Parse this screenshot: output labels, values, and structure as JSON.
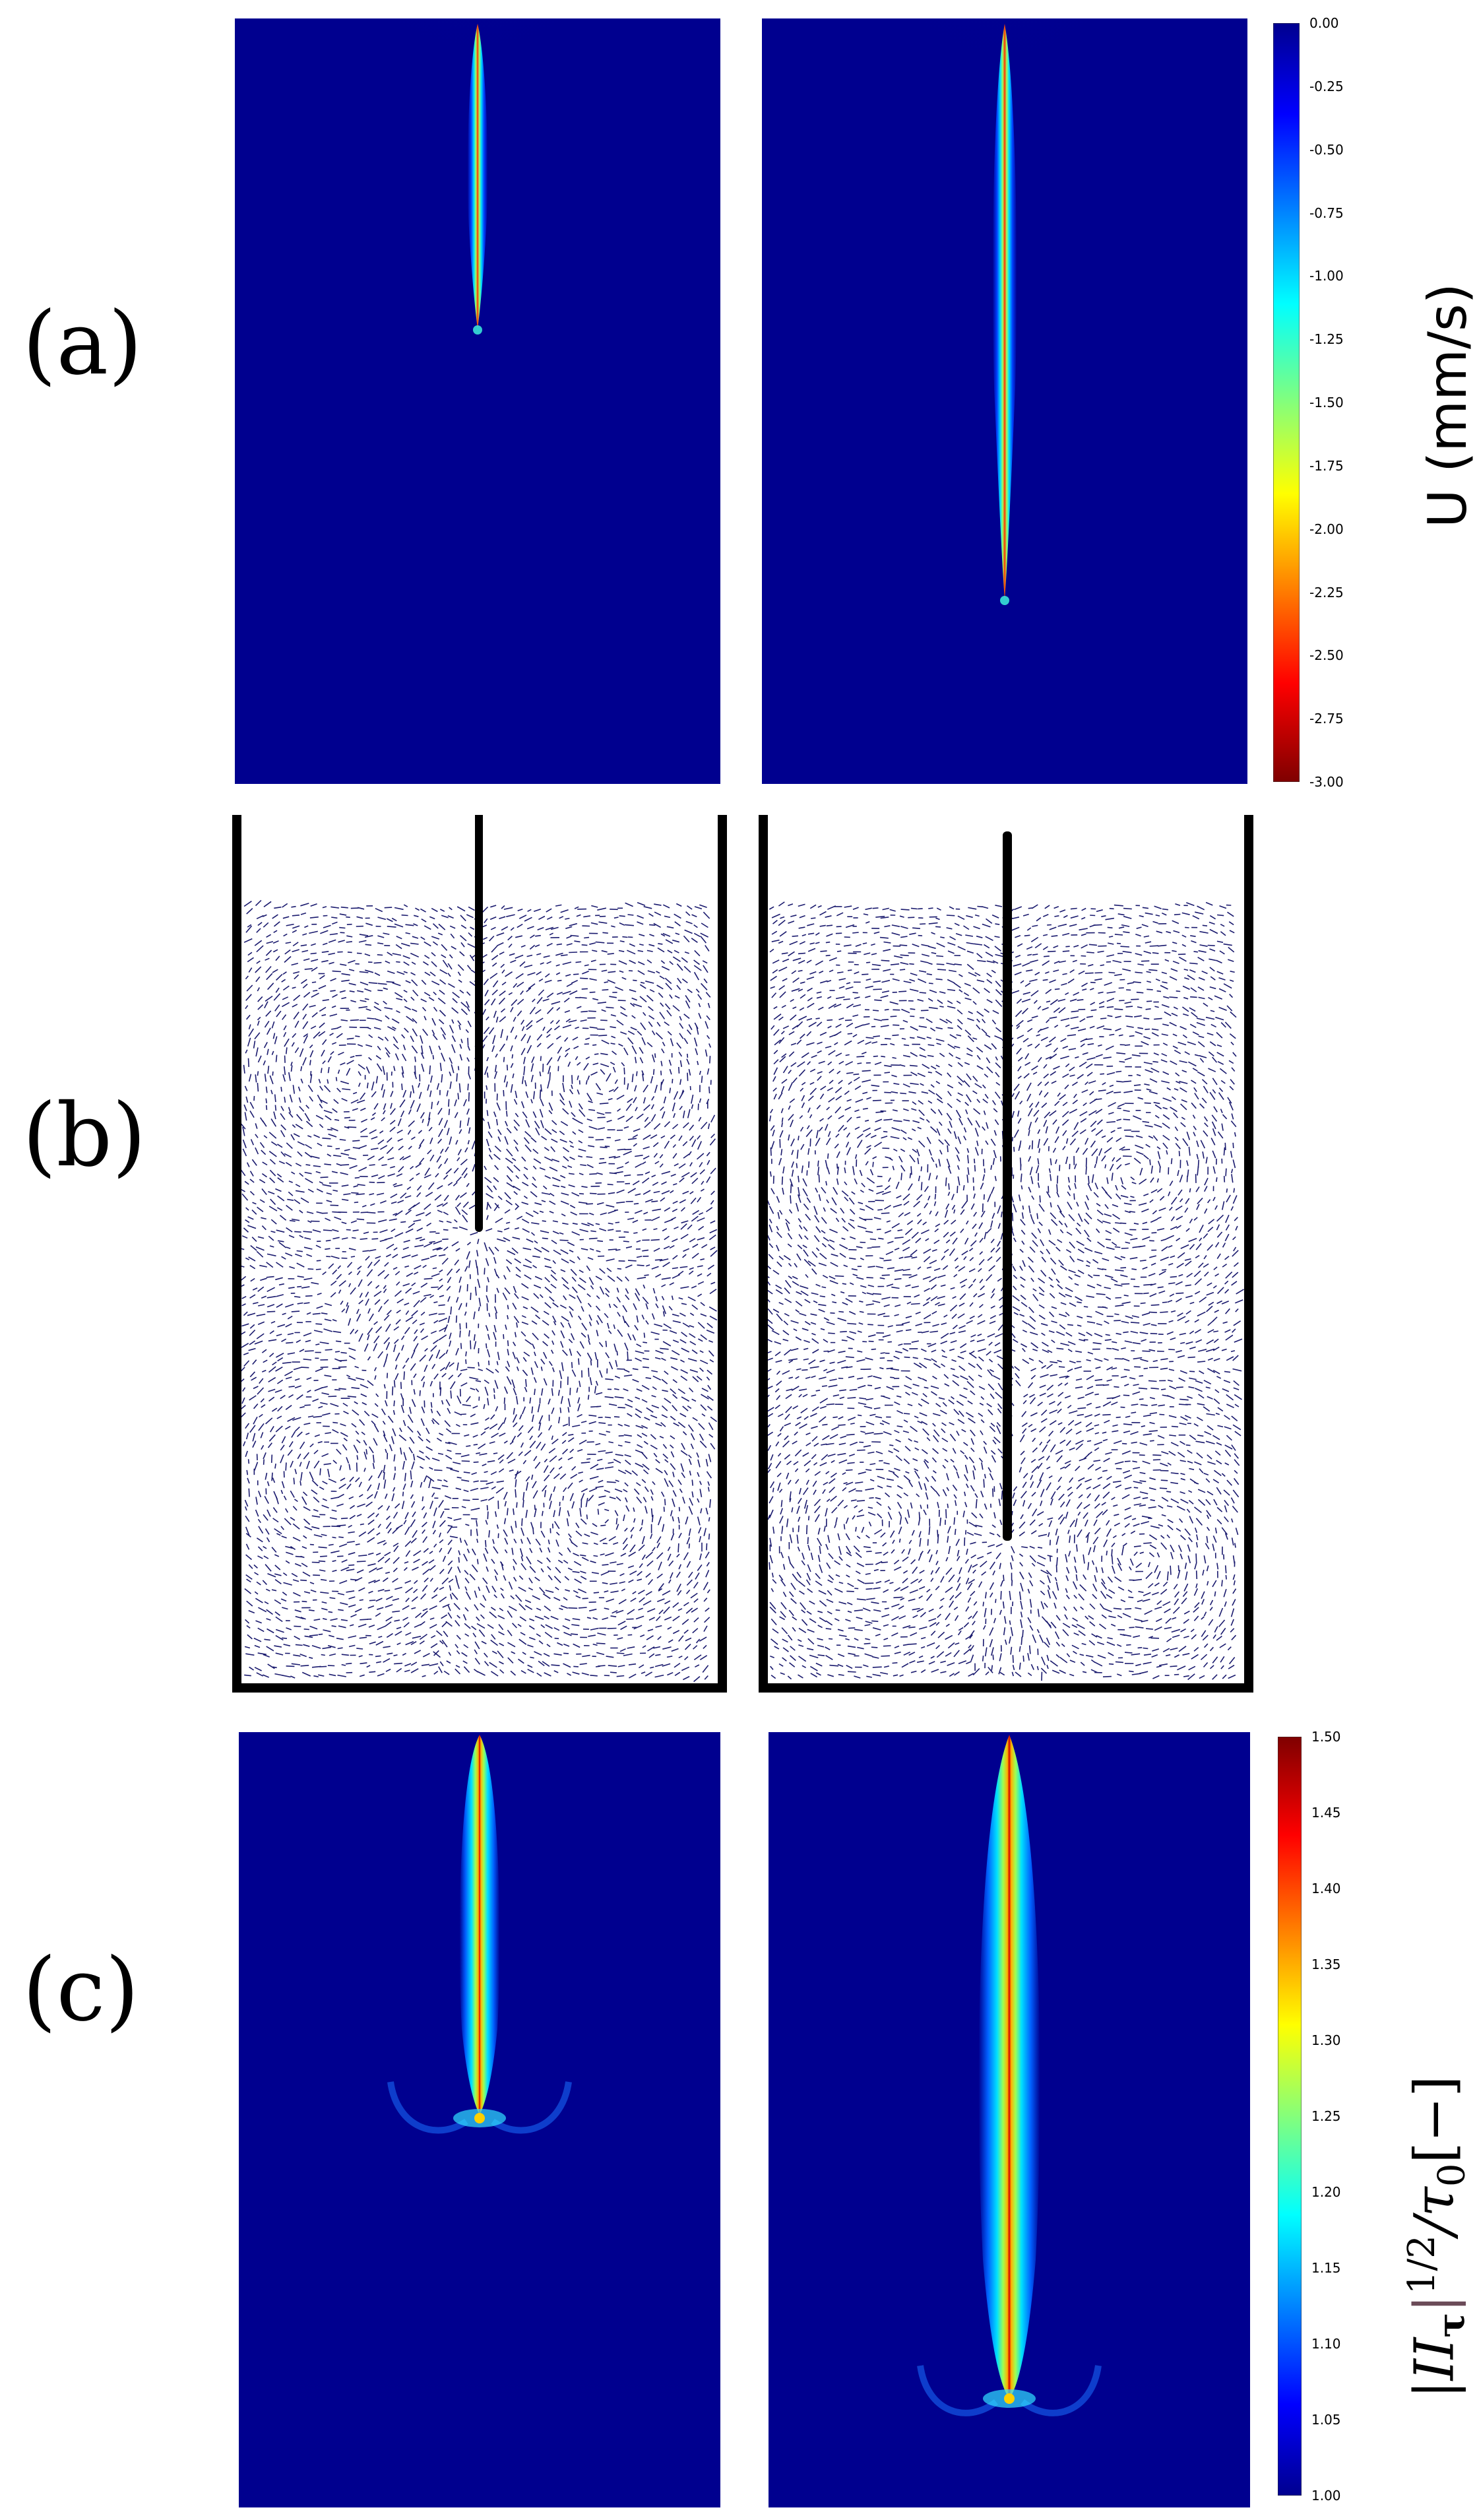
{
  "panels": {
    "a": {
      "label": "(a)"
    },
    "b": {
      "label": "(b)"
    },
    "c": {
      "label": "(c)"
    }
  },
  "colorbar_a": {
    "title": "U (mm/s)",
    "ticks": [
      "0.00",
      "-0.25",
      "-0.50",
      "-0.75",
      "-1.00",
      "-1.25",
      "-1.50",
      "-1.75",
      "-2.00",
      "-2.25",
      "-2.50",
      "-2.75",
      "-3.00"
    ]
  },
  "colorbar_c": {
    "title_main": "|II",
    "title_sub": "τ",
    "title_rest": "|",
    "title_sup": "1/2",
    "title_tail": "/τ",
    "title_tail_sub": "0",
    "title_unit": "[−]",
    "ticks": [
      "1.50",
      "1.45",
      "1.40",
      "1.35",
      "1.30",
      "1.25",
      "1.20",
      "1.15",
      "1.10",
      "1.05",
      "1.00"
    ]
  },
  "colors": {
    "field_background": "#00008f",
    "jet_low": "#00008f",
    "jet_high": "#7f0000",
    "arrow": "#1a1a6e"
  }
}
